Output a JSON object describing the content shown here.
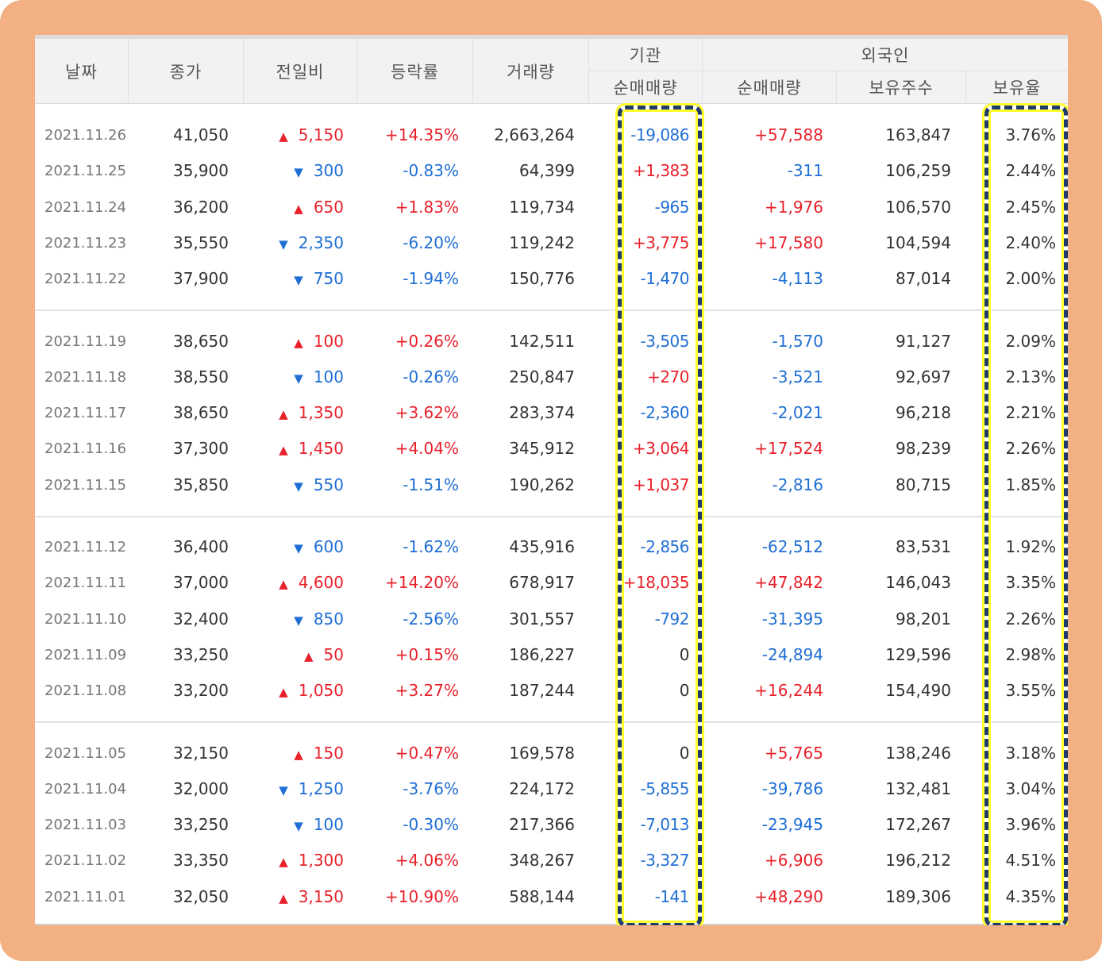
{
  "headers": {
    "date": "날짜",
    "close": "종가",
    "change": "전일비",
    "rate": "등락률",
    "volume": "거래량",
    "institution": "기관",
    "institution_net": "순매매량",
    "foreigner": "외국인",
    "foreigner_net": "순매매량",
    "foreigner_holdings": "보유주수",
    "foreigner_ratio": "보유율"
  },
  "colors": {
    "up": "#e8212b",
    "down": "#1f6ed4",
    "frame": "#f3b183",
    "highlight": "#ffff2d"
  },
  "icons": {
    "up": "▲",
    "down": "▼"
  },
  "rows": [
    {
      "date": "2021.11.26",
      "close": "41,050",
      "dir": "up",
      "change": "5,150",
      "rate": "+14.35%",
      "volume": "2,663,264",
      "inst": "-19,086",
      "fnet": "+57,588",
      "fhold": "163,847",
      "fratio": "3.76%"
    },
    {
      "date": "2021.11.25",
      "close": "35,900",
      "dir": "down",
      "change": "300",
      "rate": "-0.83%",
      "volume": "64,399",
      "inst": "+1,383",
      "fnet": "-311",
      "fhold": "106,259",
      "fratio": "2.44%"
    },
    {
      "date": "2021.11.24",
      "close": "36,200",
      "dir": "up",
      "change": "650",
      "rate": "+1.83%",
      "volume": "119,734",
      "inst": "-965",
      "fnet": "+1,976",
      "fhold": "106,570",
      "fratio": "2.45%"
    },
    {
      "date": "2021.11.23",
      "close": "35,550",
      "dir": "down",
      "change": "2,350",
      "rate": "-6.20%",
      "volume": "119,242",
      "inst": "+3,775",
      "fnet": "+17,580",
      "fhold": "104,594",
      "fratio": "2.40%"
    },
    {
      "date": "2021.11.22",
      "close": "37,900",
      "dir": "down",
      "change": "750",
      "rate": "-1.94%",
      "volume": "150,776",
      "inst": "-1,470",
      "fnet": "-4,113",
      "fhold": "87,014",
      "fratio": "2.00%"
    },
    {
      "date": "2021.11.19",
      "close": "38,650",
      "dir": "up",
      "change": "100",
      "rate": "+0.26%",
      "volume": "142,511",
      "inst": "-3,505",
      "fnet": "-1,570",
      "fhold": "91,127",
      "fratio": "2.09%"
    },
    {
      "date": "2021.11.18",
      "close": "38,550",
      "dir": "down",
      "change": "100",
      "rate": "-0.26%",
      "volume": "250,847",
      "inst": "+270",
      "fnet": "-3,521",
      "fhold": "92,697",
      "fratio": "2.13%"
    },
    {
      "date": "2021.11.17",
      "close": "38,650",
      "dir": "up",
      "change": "1,350",
      "rate": "+3.62%",
      "volume": "283,374",
      "inst": "-2,360",
      "fnet": "-2,021",
      "fhold": "96,218",
      "fratio": "2.21%"
    },
    {
      "date": "2021.11.16",
      "close": "37,300",
      "dir": "up",
      "change": "1,450",
      "rate": "+4.04%",
      "volume": "345,912",
      "inst": "+3,064",
      "fnet": "+17,524",
      "fhold": "98,239",
      "fratio": "2.26%"
    },
    {
      "date": "2021.11.15",
      "close": "35,850",
      "dir": "down",
      "change": "550",
      "rate": "-1.51%",
      "volume": "190,262",
      "inst": "+1,037",
      "fnet": "-2,816",
      "fhold": "80,715",
      "fratio": "1.85%"
    },
    {
      "date": "2021.11.12",
      "close": "36,400",
      "dir": "down",
      "change": "600",
      "rate": "-1.62%",
      "volume": "435,916",
      "inst": "-2,856",
      "fnet": "-62,512",
      "fhold": "83,531",
      "fratio": "1.92%"
    },
    {
      "date": "2021.11.11",
      "close": "37,000",
      "dir": "up",
      "change": "4,600",
      "rate": "+14.20%",
      "volume": "678,917",
      "inst": "+18,035",
      "fnet": "+47,842",
      "fhold": "146,043",
      "fratio": "3.35%"
    },
    {
      "date": "2021.11.10",
      "close": "32,400",
      "dir": "down",
      "change": "850",
      "rate": "-2.56%",
      "volume": "301,557",
      "inst": "-792",
      "fnet": "-31,395",
      "fhold": "98,201",
      "fratio": "2.26%"
    },
    {
      "date": "2021.11.09",
      "close": "33,250",
      "dir": "up",
      "change": "50",
      "rate": "+0.15%",
      "volume": "186,227",
      "inst": "0",
      "fnet": "-24,894",
      "fhold": "129,596",
      "fratio": "2.98%"
    },
    {
      "date": "2021.11.08",
      "close": "33,200",
      "dir": "up",
      "change": "1,050",
      "rate": "+3.27%",
      "volume": "187,244",
      "inst": "0",
      "fnet": "+16,244",
      "fhold": "154,490",
      "fratio": "3.55%"
    },
    {
      "date": "2021.11.05",
      "close": "32,150",
      "dir": "up",
      "change": "150",
      "rate": "+0.47%",
      "volume": "169,578",
      "inst": "0",
      "fnet": "+5,765",
      "fhold": "138,246",
      "fratio": "3.18%"
    },
    {
      "date": "2021.11.04",
      "close": "32,000",
      "dir": "down",
      "change": "1,250",
      "rate": "-3.76%",
      "volume": "224,172",
      "inst": "-5,855",
      "fnet": "-39,786",
      "fhold": "132,481",
      "fratio": "3.04%"
    },
    {
      "date": "2021.11.03",
      "close": "33,250",
      "dir": "down",
      "change": "100",
      "rate": "-0.30%",
      "volume": "217,366",
      "inst": "-7,013",
      "fnet": "-23,945",
      "fhold": "172,267",
      "fratio": "3.96%"
    },
    {
      "date": "2021.11.02",
      "close": "33,350",
      "dir": "up",
      "change": "1,300",
      "rate": "+4.06%",
      "volume": "348,267",
      "inst": "-3,327",
      "fnet": "+6,906",
      "fhold": "196,212",
      "fratio": "4.51%"
    },
    {
      "date": "2021.11.01",
      "close": "32,050",
      "dir": "up",
      "change": "3,150",
      "rate": "+10.90%",
      "volume": "588,144",
      "inst": "-141",
      "fnet": "+48,290",
      "fhold": "189,306",
      "fratio": "4.35%"
    }
  ]
}
